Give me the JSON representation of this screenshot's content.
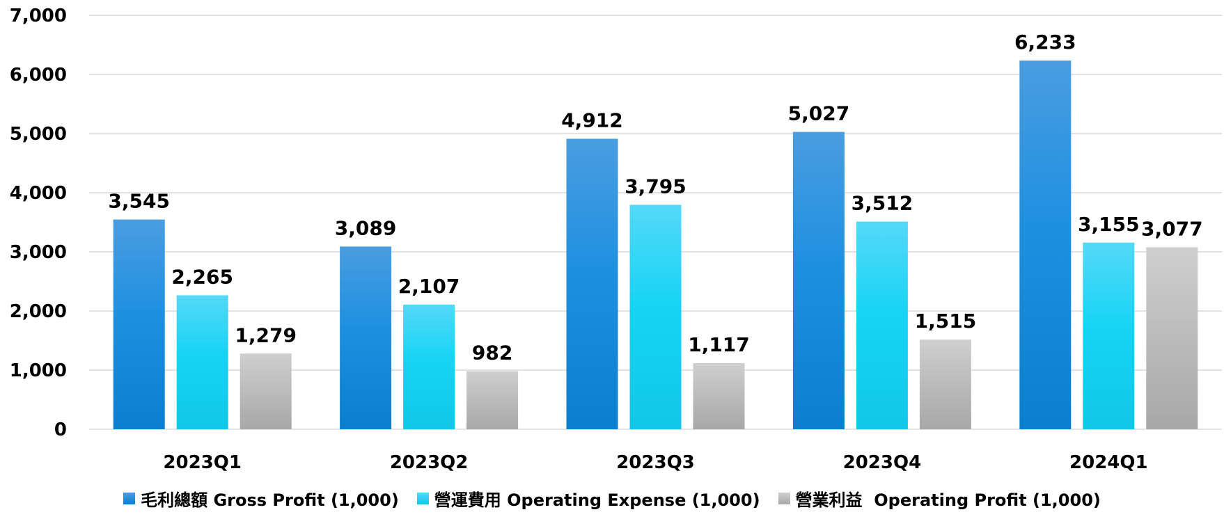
{
  "chart_data": {
    "type": "bar",
    "categories": [
      "2023Q1",
      "2023Q2",
      "2023Q3",
      "2023Q4",
      "2024Q1"
    ],
    "series": [
      {
        "name": "毛利總額 Gross Profit (1,000)",
        "values": [
          3545,
          3089,
          4912,
          5027,
          6233
        ],
        "labels": [
          "3,545",
          "3,089",
          "4,912",
          "5,027",
          "6,233"
        ],
        "color": "#1E90E0",
        "color_top": "#4A9DE0",
        "color_bottom": "#0A7FD0"
      },
      {
        "name": "營運費用 Operating Expense (1,000)",
        "values": [
          2265,
          2107,
          3795,
          3512,
          3155
        ],
        "labels": [
          "2,265",
          "2,107",
          "3,795",
          "3,512",
          "3,155"
        ],
        "color": "#16D4F4",
        "color_top": "#55D8F8",
        "color_bottom": "#10C8E8"
      },
      {
        "name": "營業利益  Operating Profit (1,000)",
        "values": [
          1279,
          982,
          1117,
          1515,
          3077
        ],
        "labels": [
          "1,279",
          "982",
          "1,117",
          "1,515",
          "3,077"
        ],
        "color": "#BDBDBD",
        "color_top": "#CFCFCF",
        "color_bottom": "#A8A8A8"
      }
    ],
    "yticks": [
      "0",
      "1,000",
      "2,000",
      "3,000",
      "4,000",
      "5,000",
      "6,000",
      "7,000"
    ],
    "ylim": [
      0,
      7000
    ],
    "grid": true,
    "legend": "bottom"
  }
}
